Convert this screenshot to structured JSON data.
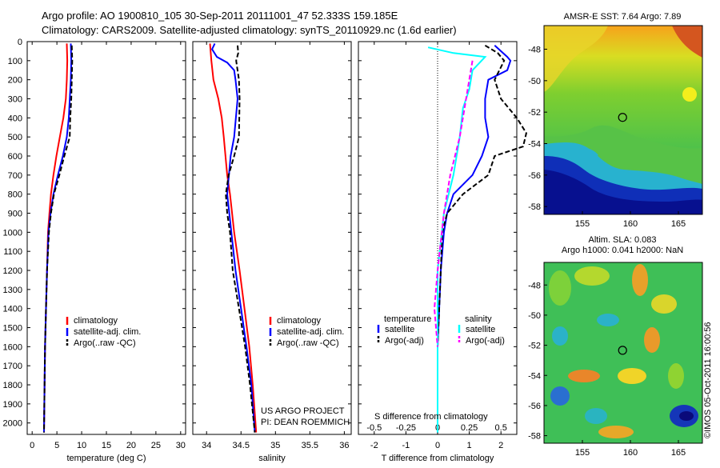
{
  "header": {
    "line1": "Argo profile: AO 1900810_105 30-Sep-2011 20111001_47 52.333S 159.185E",
    "line2": "Climatology: CARS2009. Satellite-adjusted climatology: synTS_20110929.nc (1.6d earlier)"
  },
  "colors": {
    "climatology": "#ff0000",
    "satellite": "#0000ff",
    "argo": "#000000",
    "s_climatology": "#00ffff",
    "s_argo": "#ff00ff"
  },
  "chart_data": [
    {
      "type": "line",
      "name": "temperature",
      "xlabel": "temperature (deg C)",
      "xlim": [
        -1,
        31
      ],
      "xticks": [
        0,
        5,
        10,
        15,
        20,
        25,
        30
      ],
      "ylim": [
        0,
        2060
      ],
      "yticks": [
        0,
        100,
        200,
        300,
        400,
        500,
        600,
        700,
        800,
        900,
        1000,
        1100,
        1200,
        1300,
        1400,
        1500,
        1600,
        1700,
        1800,
        1900,
        2000
      ],
      "legend": [
        "climatology",
        "satellite-adj. clim.",
        "Argo(..raw -QC)"
      ],
      "series": [
        {
          "name": "climatology",
          "style": "solid",
          "color": "#ff0000",
          "points": [
            [
              7.0,
              10
            ],
            [
              7.1,
              100
            ],
            [
              7.0,
              200
            ],
            [
              6.8,
              300
            ],
            [
              6.3,
              400
            ],
            [
              5.6,
              500
            ],
            [
              4.9,
              600
            ],
            [
              4.3,
              700
            ],
            [
              3.8,
              800
            ],
            [
              3.5,
              900
            ],
            [
              3.2,
              1000
            ],
            [
              3.0,
              1200
            ],
            [
              2.8,
              1400
            ],
            [
              2.6,
              1600
            ],
            [
              2.5,
              1800
            ],
            [
              2.4,
              2050
            ]
          ]
        },
        {
          "name": "satellite-adj. clim.",
          "style": "solid",
          "color": "#0000ff",
          "points": [
            [
              7.8,
              10
            ],
            [
              7.9,
              100
            ],
            [
              7.8,
              200
            ],
            [
              7.6,
              300
            ],
            [
              7.4,
              400
            ],
            [
              7.0,
              500
            ],
            [
              6.2,
              600
            ],
            [
              5.2,
              700
            ],
            [
              4.3,
              800
            ],
            [
              3.7,
              900
            ],
            [
              3.3,
              1000
            ],
            [
              3.0,
              1200
            ],
            [
              2.8,
              1400
            ],
            [
              2.6,
              1600
            ],
            [
              2.5,
              1800
            ],
            [
              2.4,
              2050
            ]
          ]
        },
        {
          "name": "Argo(..raw -QC)",
          "style": "dashed",
          "color": "#000000",
          "points": [
            [
              8.0,
              20
            ],
            [
              8.1,
              100
            ],
            [
              8.0,
              200
            ],
            [
              7.9,
              300
            ],
            [
              7.7,
              400
            ],
            [
              7.6,
              500
            ],
            [
              6.5,
              600
            ],
            [
              5.5,
              700
            ],
            [
              4.4,
              800
            ],
            [
              3.8,
              900
            ],
            [
              3.4,
              1000
            ],
            [
              3.0,
              1200
            ],
            [
              2.8,
              1400
            ],
            [
              2.6,
              1600
            ],
            [
              2.5,
              1800
            ],
            [
              2.4,
              2050
            ]
          ]
        }
      ]
    },
    {
      "type": "line",
      "name": "salinity",
      "xlabel": "salinity",
      "xlim": [
        33.8,
        36.1
      ],
      "xticks": [
        34,
        34.5,
        35,
        35.5,
        36
      ],
      "ylim": [
        0,
        2060
      ],
      "legend": [
        "climatology",
        "satellite-adj. clim.",
        "Argo(..raw -QC)"
      ],
      "annotation": [
        "US ARGO PROJECT",
        "PI: DEAN ROEMMICH"
      ],
      "series": [
        {
          "name": "climatology",
          "style": "solid",
          "color": "#ff0000",
          "points": [
            [
              34.05,
              10
            ],
            [
              34.07,
              100
            ],
            [
              34.1,
              200
            ],
            [
              34.17,
              300
            ],
            [
              34.22,
              400
            ],
            [
              34.25,
              500
            ],
            [
              34.3,
              700
            ],
            [
              34.34,
              800
            ],
            [
              34.37,
              900
            ],
            [
              34.4,
              1000
            ],
            [
              34.48,
              1200
            ],
            [
              34.55,
              1400
            ],
            [
              34.62,
              1600
            ],
            [
              34.67,
              1800
            ],
            [
              34.72,
              2050
            ]
          ]
        },
        {
          "name": "satellite-adj. clim.",
          "style": "solid",
          "color": "#0000ff",
          "points": [
            [
              34.12,
              10
            ],
            [
              34.08,
              40
            ],
            [
              34.15,
              80
            ],
            [
              34.3,
              110
            ],
            [
              34.4,
              150
            ],
            [
              34.42,
              200
            ],
            [
              34.45,
              300
            ],
            [
              34.4,
              500
            ],
            [
              34.35,
              600
            ],
            [
              34.3,
              800
            ],
            [
              34.33,
              900
            ],
            [
              34.36,
              1000
            ],
            [
              34.42,
              1200
            ],
            [
              34.5,
              1400
            ],
            [
              34.58,
              1600
            ],
            [
              34.65,
              1800
            ],
            [
              34.7,
              2050
            ]
          ]
        },
        {
          "name": "Argo(..raw -QC)",
          "style": "dashed",
          "color": "#000000",
          "points": [
            [
              34.45,
              20
            ],
            [
              34.46,
              60
            ],
            [
              34.43,
              100
            ],
            [
              34.47,
              200
            ],
            [
              34.48,
              300
            ],
            [
              34.47,
              500
            ],
            [
              34.4,
              600
            ],
            [
              34.32,
              700
            ],
            [
              34.28,
              800
            ],
            [
              34.3,
              900
            ],
            [
              34.34,
              1000
            ],
            [
              34.38,
              1200
            ],
            [
              34.47,
              1400
            ],
            [
              34.56,
              1600
            ],
            [
              34.63,
              1800
            ],
            [
              34.7,
              2050
            ]
          ]
        }
      ]
    },
    {
      "type": "line",
      "name": "difference",
      "xlabel": "T difference from climatology",
      "x2label": "S difference from climatology",
      "xlim": [
        -2.5,
        2.5
      ],
      "xticks": [
        -2,
        -1,
        0,
        1,
        2
      ],
      "x2ticks": [
        "-0.5",
        "-0.25",
        "0",
        "0.25",
        "0.5"
      ],
      "ylim": [
        0,
        2060
      ],
      "legend": {
        "temperature": "temperature",
        "salinity": "salinity",
        "satellite": "satellite",
        "argo": "Argo(-adj)"
      },
      "series": [
        {
          "name": "temperature satellite",
          "style": "solid",
          "color": "#0000ff",
          "points": [
            [
              1.8,
              20
            ],
            [
              2.2,
              80
            ],
            [
              2.3,
              100
            ],
            [
              2.2,
              150
            ],
            [
              1.6,
              200
            ],
            [
              1.5,
              300
            ],
            [
              1.5,
              400
            ],
            [
              1.6,
              500
            ],
            [
              1.4,
              600
            ],
            [
              1.1,
              700
            ],
            [
              0.5,
              800
            ],
            [
              0.3,
              900
            ],
            [
              0.2,
              1000
            ],
            [
              0.1,
              1200
            ],
            [
              0.05,
              1400
            ],
            [
              0,
              1600
            ],
            [
              0,
              2050
            ]
          ]
        },
        {
          "name": "temperature Argo(-adj)",
          "style": "dashed",
          "color": "#000000",
          "points": [
            [
              1.5,
              20
            ],
            [
              1.9,
              60
            ],
            [
              2.1,
              100
            ],
            [
              1.8,
              200
            ],
            [
              2.0,
              300
            ],
            [
              2.5,
              400
            ],
            [
              2.8,
              480
            ],
            [
              2.7,
              550
            ],
            [
              1.8,
              600
            ],
            [
              1.6,
              700
            ],
            [
              0.8,
              800
            ],
            [
              0.3,
              900
            ],
            [
              0.15,
              1000
            ],
            [
              0.1,
              1200
            ],
            [
              0.05,
              1400
            ],
            [
              0,
              1600
            ],
            [
              0,
              2050
            ]
          ]
        },
        {
          "name": "salinity satellite",
          "style": "solid",
          "color": "#00ffff",
          "points": [
            [
              -0.3,
              30
            ],
            [
              0.5,
              60
            ],
            [
              1.5,
              80
            ],
            [
              1.1,
              150
            ],
            [
              1.0,
              250
            ],
            [
              0.8,
              350
            ],
            [
              0.7,
              500
            ],
            [
              0.5,
              700
            ],
            [
              0.2,
              900
            ],
            [
              0.0,
              1200
            ],
            [
              0.0,
              1600
            ],
            [
              0.0,
              2050
            ]
          ]
        },
        {
          "name": "salinity Argo(-adj)",
          "style": "dashed",
          "color": "#ff00ff",
          "points": [
            [
              1.1,
              100
            ],
            [
              0.9,
              300
            ],
            [
              0.7,
              500
            ],
            [
              0.4,
              700
            ],
            [
              0.2,
              900
            ],
            [
              0.0,
              1200
            ],
            [
              -0.1,
              1400
            ],
            [
              0.0,
              1600
            ]
          ]
        }
      ]
    },
    {
      "type": "heatmap",
      "name": "sst map",
      "title": "AMSR-E SST: 7.64  Argo: 7.89",
      "xlim": [
        151,
        167.5
      ],
      "ylim": [
        -58.5,
        -46.5
      ],
      "xticks": [
        155,
        160,
        165
      ],
      "yticks": [
        -48,
        -50,
        -52,
        -54,
        -56,
        -58
      ],
      "marker": {
        "lon": 159.185,
        "lat": -52.333
      }
    },
    {
      "type": "heatmap",
      "name": "sla map",
      "title": "Altim. SLA: 0.083",
      "subtitle": "Argo h1000: 0.041 h2000: NaN",
      "xlim": [
        151,
        167.5
      ],
      "ylim": [
        -58.5,
        -46.5
      ],
      "xticks": [
        155,
        160,
        165
      ],
      "yticks": [
        -48,
        -50,
        -52,
        -54,
        -56,
        -58
      ],
      "marker": {
        "lon": 159.185,
        "lat": -52.333
      }
    }
  ],
  "footer": {
    "credit": "©IMOS 05-Oct-2011 16:00:56"
  }
}
